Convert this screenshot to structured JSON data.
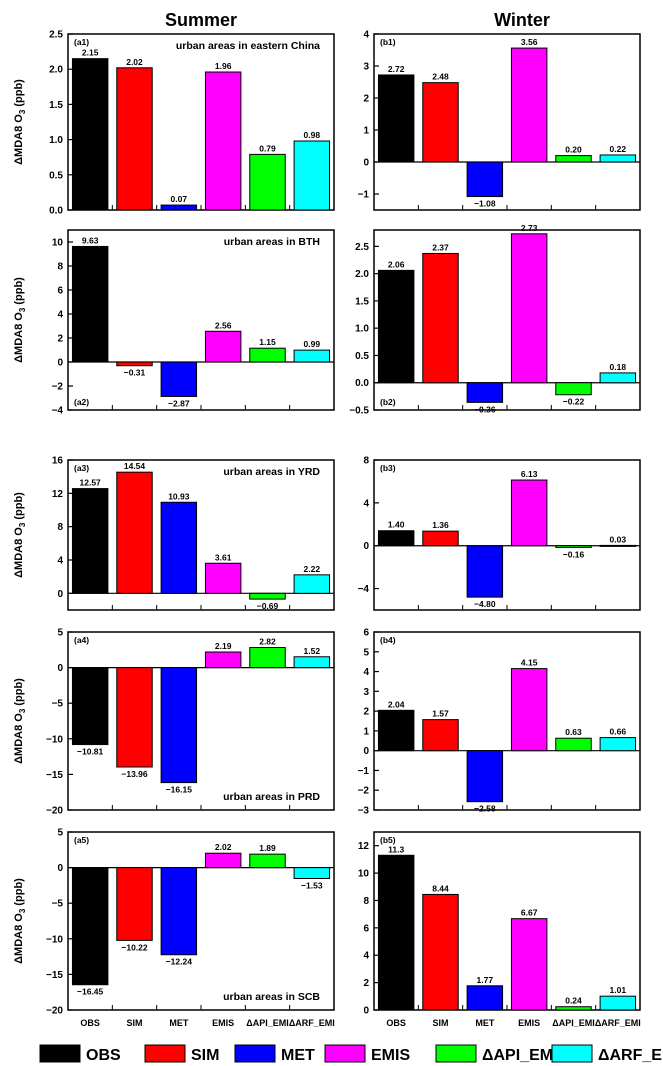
{
  "column_titles": [
    "Summer",
    "Winter"
  ],
  "legend": [
    {
      "label": "OBS",
      "color": "#000000"
    },
    {
      "label": "SIM",
      "color": "#ff0000"
    },
    {
      "label": "MET",
      "color": "#0000ff"
    },
    {
      "label": "EMIS",
      "color": "#ff00ff"
    },
    {
      "label": "ΔAPI_EMI",
      "color": "#00ff00"
    },
    {
      "label": "ΔARF_EMI",
      "color": "#00ffff"
    }
  ],
  "chart_data": [
    {
      "type": "bar",
      "panel": "(a1)",
      "region": "urban areas in eastern China",
      "ylabel": "ΔMDA8 O3 (ppb)",
      "ylim": [
        0,
        2.5
      ],
      "yticks": [
        0.0,
        0.5,
        1.0,
        1.5,
        2.0,
        2.5
      ],
      "ytick_labels": [
        "0.0",
        "0.5",
        "1.0",
        "1.5",
        "2.0",
        "2.5"
      ],
      "categories": [
        "OBS",
        "SIM",
        "MET",
        "EMIS",
        "ΔAPI_EMI",
        "ΔARF_EMI"
      ],
      "values": [
        2.15,
        2.02,
        0.07,
        1.96,
        0.79,
        0.98
      ],
      "value_labels": [
        "2.15",
        "2.02",
        "0.07",
        "1.96",
        "0.79",
        "0.98"
      ]
    },
    {
      "type": "bar",
      "panel": "(b1)",
      "region": "",
      "ylabel": "",
      "ylim": [
        -1.5,
        4
      ],
      "yticks": [
        -1,
        0,
        1,
        2,
        3,
        4
      ],
      "ytick_labels": [
        "−1",
        "0",
        "1",
        "2",
        "3",
        "4"
      ],
      "categories": [
        "OBS",
        "SIM",
        "MET",
        "EMIS",
        "ΔAPI_EMI",
        "ΔARF_EMI"
      ],
      "values": [
        2.72,
        2.48,
        -1.08,
        3.56,
        0.2,
        0.22
      ],
      "value_labels": [
        "2.72",
        "2.48",
        "−1.08",
        "3.56",
        "0.20",
        "0.22"
      ]
    },
    {
      "type": "bar",
      "panel": "(a2)",
      "region": "urban areas in BTH",
      "ylabel": "ΔMDA8 O3 (ppb)",
      "ylim": [
        -4,
        11
      ],
      "yticks": [
        -4,
        -2,
        0,
        2,
        4,
        6,
        8,
        10
      ],
      "ytick_labels": [
        "−4",
        "−2",
        "0",
        "2",
        "4",
        "6",
        "8",
        "10"
      ],
      "categories": [
        "OBS",
        "SIM",
        "MET",
        "EMIS",
        "ΔAPI_EMI",
        "ΔARF_EMI"
      ],
      "values": [
        9.63,
        -0.31,
        -2.87,
        2.56,
        1.15,
        0.99
      ],
      "value_labels": [
        "9.63",
        "−0.31",
        "−2.87",
        "2.56",
        "1.15",
        "0.99"
      ]
    },
    {
      "type": "bar",
      "panel": "(b2)",
      "region": "",
      "ylabel": "",
      "ylim": [
        -0.5,
        2.8
      ],
      "yticks": [
        -0.5,
        0.0,
        0.5,
        1.0,
        1.5,
        2.0,
        2.5
      ],
      "ytick_labels": [
        "−0.5",
        "0.0",
        "0.5",
        "1.0",
        "1.5",
        "2.0",
        "2.5"
      ],
      "categories": [
        "OBS",
        "SIM",
        "MET",
        "EMIS",
        "ΔAPI_EMI",
        "ΔARF_EMI"
      ],
      "values": [
        2.06,
        2.37,
        -0.36,
        2.73,
        -0.22,
        0.18
      ],
      "value_labels": [
        "2.06",
        "2.37",
        "−0.36",
        "2.73",
        "−0.22",
        "0.18"
      ]
    },
    {
      "type": "bar",
      "panel": "(a3)",
      "region": "urban areas in YRD",
      "ylabel": "ΔMDA8 O3 (ppb)",
      "ylim": [
        -2,
        16
      ],
      "yticks": [
        0,
        4,
        8,
        12,
        16
      ],
      "ytick_labels": [
        "0",
        "4",
        "8",
        "12",
        "16"
      ],
      "categories": [
        "OBS",
        "SIM",
        "MET",
        "EMIS",
        "ΔAPI_EMI",
        "ΔARF_EMI"
      ],
      "values": [
        12.57,
        14.54,
        10.93,
        3.61,
        -0.69,
        2.22
      ],
      "value_labels": [
        "12.57",
        "14.54",
        "10.93",
        "3.61",
        "−0.69",
        "2.22"
      ]
    },
    {
      "type": "bar",
      "panel": "(b3)",
      "region": "",
      "ylabel": "",
      "ylim": [
        -6,
        8
      ],
      "yticks": [
        -4,
        0,
        4,
        8
      ],
      "ytick_labels": [
        "−4",
        "0",
        "4",
        "8"
      ],
      "categories": [
        "OBS",
        "SIM",
        "MET",
        "EMIS",
        "ΔAPI_EMI",
        "ΔARF_EMI"
      ],
      "values": [
        1.4,
        1.36,
        -4.8,
        6.13,
        -0.16,
        0.03
      ],
      "value_labels": [
        "1.40",
        "1.36",
        "−4.80",
        "6.13",
        "−0.16",
        "0.03"
      ]
    },
    {
      "type": "bar",
      "panel": "(a4)",
      "region": "urban areas in PRD",
      "ylabel": "ΔMDA8 O3 (ppb)",
      "ylim": [
        -20,
        5
      ],
      "yticks": [
        -20,
        -15,
        -10,
        -5,
        0,
        5
      ],
      "ytick_labels": [
        "−20",
        "−15",
        "−10",
        "−5",
        "0",
        "5"
      ],
      "categories": [
        "OBS",
        "SIM",
        "MET",
        "EMIS",
        "ΔAPI_EMI",
        "ΔARF_EMI"
      ],
      "values": [
        -10.81,
        -13.96,
        -16.15,
        2.19,
        2.82,
        1.52
      ],
      "value_labels": [
        "−10.81",
        "−13.96",
        "−16.15",
        "2.19",
        "2.82",
        "1.52"
      ]
    },
    {
      "type": "bar",
      "panel": "(b4)",
      "region": "",
      "ylabel": "",
      "ylim": [
        -3,
        6
      ],
      "yticks": [
        -3,
        -2,
        -1,
        0,
        1,
        2,
        3,
        4,
        5,
        6
      ],
      "ytick_labels": [
        "−3",
        "−2",
        "−1",
        "0",
        "1",
        "2",
        "3",
        "4",
        "5",
        "6"
      ],
      "categories": [
        "OBS",
        "SIM",
        "MET",
        "EMIS",
        "ΔAPI_EMI",
        "ΔARF_EMI"
      ],
      "values": [
        2.04,
        1.57,
        -2.58,
        4.15,
        0.63,
        0.66
      ],
      "value_labels": [
        "2.04",
        "1.57",
        "−2.58",
        "4.15",
        "0.63",
        "0.66"
      ]
    },
    {
      "type": "bar",
      "panel": "(a5)",
      "region": "urban areas in SCB",
      "ylabel": "ΔMDA8 O3 (ppb)",
      "ylim": [
        -20,
        5
      ],
      "yticks": [
        -20,
        -15,
        -10,
        -5,
        0,
        5
      ],
      "ytick_labels": [
        "−20",
        "−15",
        "−10",
        "−5",
        "0",
        "5"
      ],
      "categories": [
        "OBS",
        "SIM",
        "MET",
        "EMIS",
        "ΔAPI_EMI",
        "ΔARF_EMI"
      ],
      "values": [
        -16.45,
        -10.22,
        -12.24,
        2.02,
        1.89,
        -1.53
      ],
      "value_labels": [
        "−16.45",
        "−10.22",
        "−12.24",
        "2.02",
        "1.89",
        "−1.53"
      ]
    },
    {
      "type": "bar",
      "panel": "(b5)",
      "region": "",
      "ylabel": "",
      "ylim": [
        0,
        13
      ],
      "yticks": [
        0,
        2,
        4,
        6,
        8,
        10,
        12
      ],
      "ytick_labels": [
        "0",
        "2",
        "4",
        "6",
        "8",
        "10",
        "12"
      ],
      "categories": [
        "OBS",
        "SIM",
        "MET",
        "EMIS",
        "ΔAPI_EMI",
        "ΔARF_EMI"
      ],
      "values": [
        11.3,
        8.44,
        1.77,
        6.67,
        0.24,
        1.01
      ],
      "value_labels": [
        "11.3",
        "8.44",
        "1.77",
        "6.67",
        "0.24",
        "1.01"
      ]
    }
  ]
}
